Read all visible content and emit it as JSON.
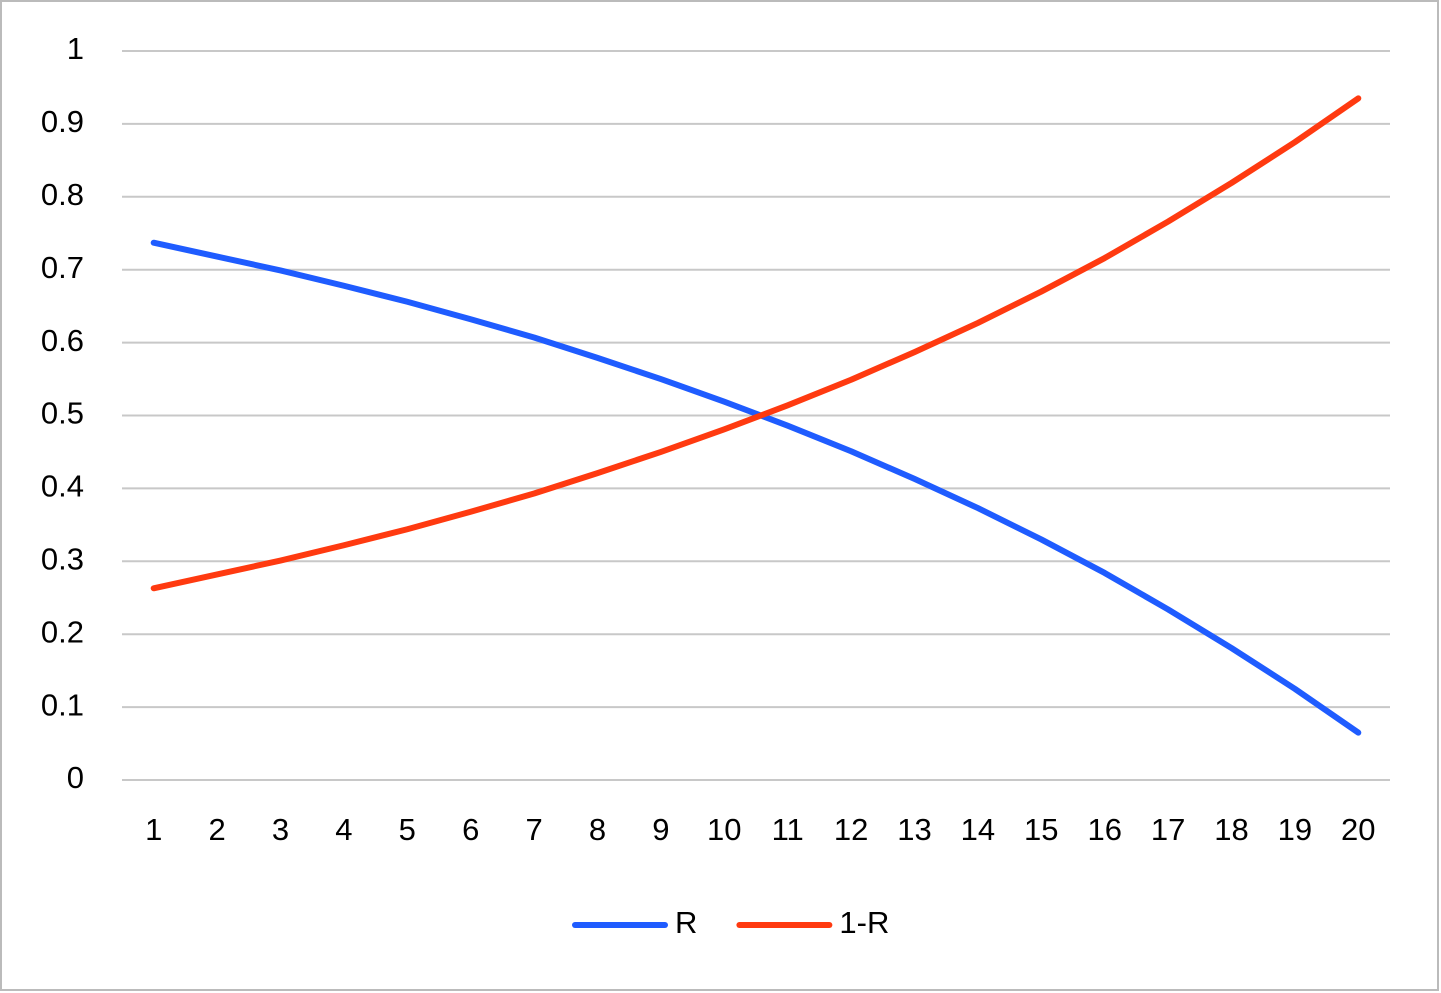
{
  "chart_data": {
    "type": "line",
    "categories": [
      1,
      2,
      3,
      4,
      5,
      6,
      7,
      8,
      9,
      10,
      11,
      12,
      13,
      14,
      15,
      16,
      17,
      18,
      19,
      20
    ],
    "series": [
      {
        "name": "R",
        "color": "#1f5cff",
        "values": [
          0.737,
          0.718,
          0.699,
          0.678,
          0.656,
          0.632,
          0.607,
          0.579,
          0.55,
          0.519,
          0.486,
          0.451,
          0.413,
          0.373,
          0.33,
          0.284,
          0.234,
          0.181,
          0.125,
          0.065
        ]
      },
      {
        "name": "1-R",
        "color": "#ff3a10",
        "values": [
          0.263,
          0.282,
          0.301,
          0.322,
          0.344,
          0.368,
          0.393,
          0.421,
          0.45,
          0.481,
          0.514,
          0.549,
          0.587,
          0.627,
          0.67,
          0.716,
          0.766,
          0.819,
          0.875,
          0.935
        ]
      }
    ],
    "ylim": [
      0,
      1
    ],
    "yticks": [
      0,
      0.1,
      0.2,
      0.3,
      0.4,
      0.5,
      0.6,
      0.7,
      0.8,
      0.9,
      1
    ],
    "grid": true,
    "legend": "bottom"
  }
}
